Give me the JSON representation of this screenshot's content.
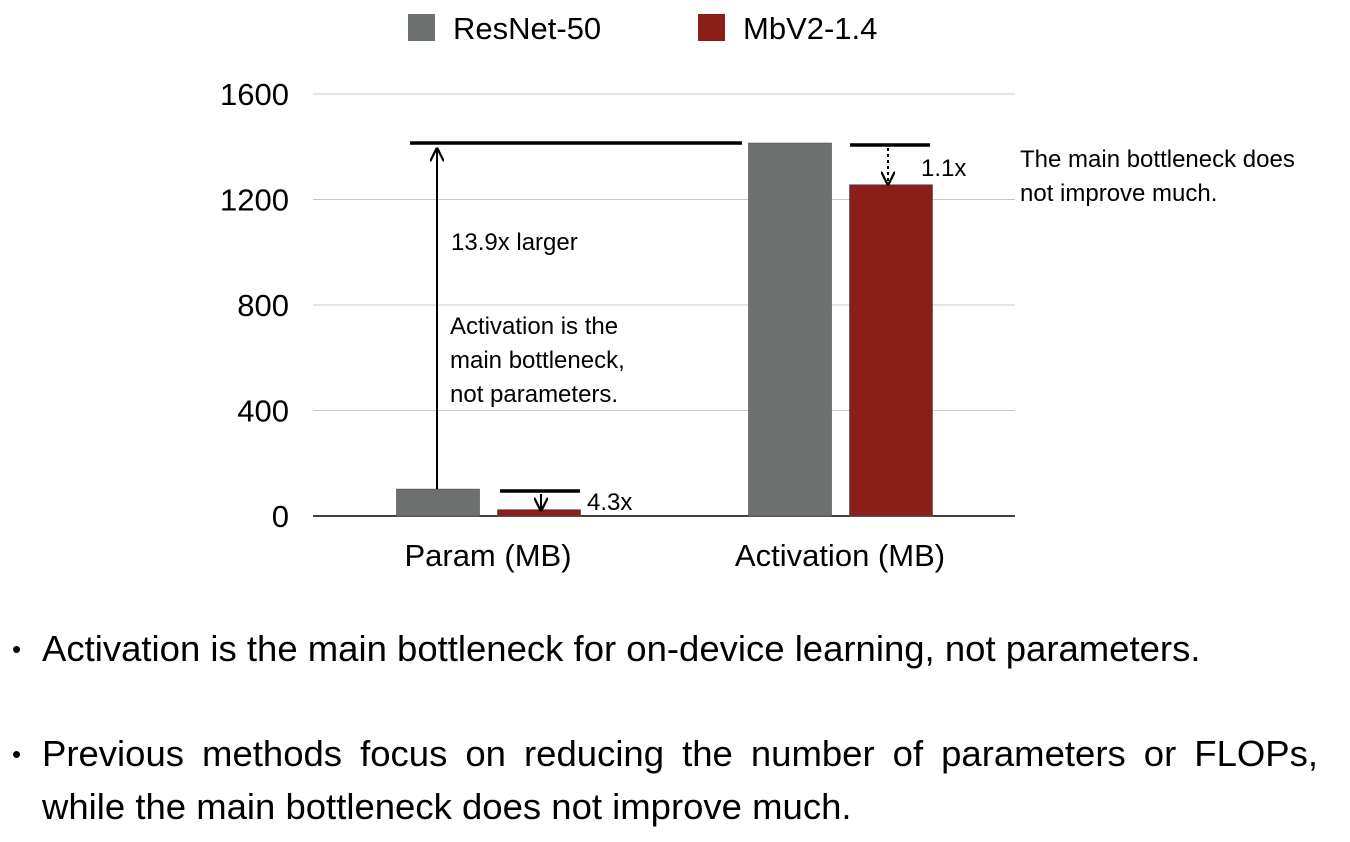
{
  "chart_data": {
    "type": "bar",
    "categories": [
      "Param (MB)",
      "Activation (MB)"
    ],
    "series": [
      {
        "name": "ResNet-50",
        "values": [
          102,
          1414
        ],
        "color": "#6c706e"
      },
      {
        "name": "MbV2-1.4",
        "values": [
          24,
          1256
        ],
        "color": "#8a1e19"
      }
    ],
    "ylim": [
      0,
      1600
    ],
    "yticks": [
      "0",
      "400",
      "800",
      "1200",
      "1600"
    ],
    "grid": true,
    "legend_position": "top",
    "annotations": {
      "param_ratio": "4.3x",
      "activation_ratio": "1.1x",
      "larger_ratio": "13.9x larger",
      "note_lines": [
        "Activation is the",
        "main bottleneck,",
        "not parameters."
      ],
      "side_note_lines": [
        "The main bottleneck does",
        "not improve much."
      ]
    }
  },
  "bullets": [
    "Activation is the main bottleneck for on-device learning, not parameters.",
    "Previous methods focus on reducing the number of parameters or FLOPs, while the main bottleneck does not improve much."
  ],
  "bullet_marker": "•"
}
